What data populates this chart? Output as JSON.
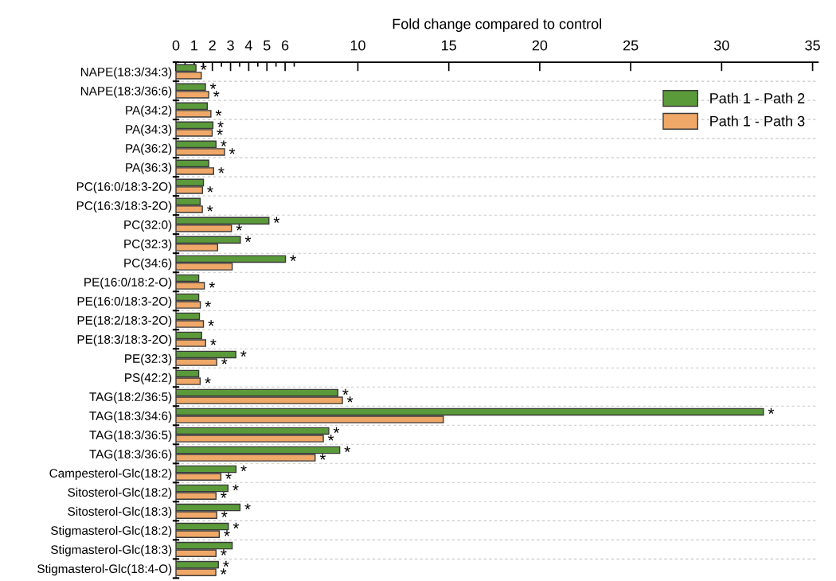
{
  "chart_data": {
    "type": "bar",
    "orientation": "horizontal",
    "xlabel": "Fold change compared to control",
    "categories": [
      "NAPE(18:3/34:3)",
      "NAPE(18:3/36:6)",
      "PA(34:2)",
      "PA(34:3)",
      "PA(36:2)",
      "PA(36:3)",
      "PC(16:0/18:3-2O)",
      "PC(16:3/18:3-2O)",
      "PC(32:0)",
      "PC(32:3)",
      "PC(34:6)",
      "PE(16:0/18:2-O)",
      "PE(16:0/18:3-2O)",
      "PE(18:2/18:3-2O)",
      "PE(18:3/18:3-2O)",
      "PE(32:3)",
      "PS(42:2)",
      "TAG(18:2/36:5)",
      "TAG(18:3/34:6)",
      "TAG(18:3/36:5)",
      "TAG(18:3/36:6)",
      "Campesterol-Glc(18:2)",
      "Sitosterol-Glc(18:2)",
      "Sitosterol-Glc(18:3)",
      "Stigmasterol-Glc(18:2)",
      "Stigmasterol-Glc(18:3)",
      "Stigmasterol-Glc(18:4-O)"
    ],
    "series": [
      {
        "name": "Path 1 - Path 2",
        "color": "#5b9a3a",
        "values": [
          1.1,
          1.62,
          1.72,
          2.03,
          2.2,
          1.8,
          1.51,
          1.33,
          5.11,
          3.54,
          6.02,
          1.25,
          1.25,
          1.29,
          1.41,
          3.29,
          1.25,
          8.9,
          32.3,
          8.4,
          9.0,
          3.3,
          2.86,
          3.52,
          2.88,
          3.09,
          2.33
        ],
        "value_labels": [
          "*",
          "*",
          null,
          "*",
          "*",
          null,
          null,
          null,
          "*",
          "*",
          "*",
          null,
          null,
          null,
          null,
          "*",
          null,
          "*",
          "*",
          "*",
          "*",
          "*",
          "*",
          "*",
          "*",
          null,
          "*"
        ]
      },
      {
        "name": "Path 1 - Path 3",
        "color": "#f0a868",
        "values": [
          1.39,
          1.8,
          1.92,
          1.99,
          2.67,
          2.07,
          1.46,
          1.45,
          3.05,
          2.29,
          3.09,
          1.56,
          1.34,
          1.51,
          1.63,
          2.24,
          1.33,
          9.15,
          14.7,
          8.1,
          7.65,
          2.47,
          2.2,
          2.24,
          2.38,
          2.2,
          2.19
        ],
        "value_labels": [
          null,
          "*",
          "*",
          "*",
          "*",
          "*",
          "*",
          "*",
          "*",
          null,
          null,
          "*",
          "*",
          "*",
          "*",
          "*",
          "*",
          "*",
          null,
          "*",
          "*",
          "*",
          "*",
          "*",
          "*",
          "*",
          "*"
        ]
      }
    ],
    "xlim": [
      0,
      35.3
    ],
    "xticks": [
      0,
      {
        "value": 0.5,
        "label": null
      },
      1,
      {
        "value": 1.5,
        "label": null
      },
      2,
      {
        "value": 2.5,
        "label": null
      },
      3,
      {
        "value": 3.5,
        "label": null
      },
      4,
      {
        "value": 4.5,
        "label": null
      },
      5,
      {
        "value": 5.5,
        "label": null
      },
      6,
      {
        "value": 6.5,
        "label": null
      },
      10,
      15,
      20,
      25,
      30,
      35
    ],
    "grid": "y",
    "legend": "top right"
  }
}
